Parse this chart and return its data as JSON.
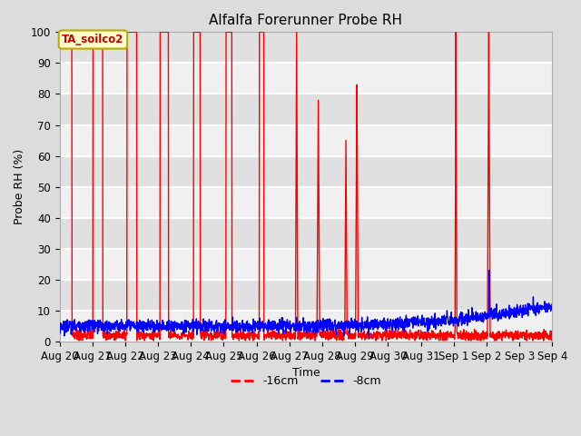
{
  "title": "Alfalfa Forerunner Probe RH",
  "xlabel": "Time",
  "ylabel": "Probe RH (%)",
  "ylim": [
    0,
    100
  ],
  "figure_bg": "#dcdcdc",
  "plot_bg": "#e8e8e8",
  "grid_color": "white",
  "annotation_text": "TA_soilco2",
  "annotation_bg": "#ffffcc",
  "annotation_border": "#bbaa00",
  "x_tick_labels": [
    "Aug 20",
    "Aug 21",
    "Aug 22",
    "Aug 23",
    "Aug 24",
    "Aug 25",
    "Aug 26",
    "Aug 27",
    "Aug 28",
    "Aug 29",
    "Aug 30",
    "Aug 31",
    "Sep 1",
    "Sep 2",
    "Sep 3",
    "Sep 4"
  ],
  "legend_labels": [
    "-16cm",
    "-8cm"
  ],
  "line_width": 1.0,
  "num_days": 15,
  "points_per_day": 144
}
